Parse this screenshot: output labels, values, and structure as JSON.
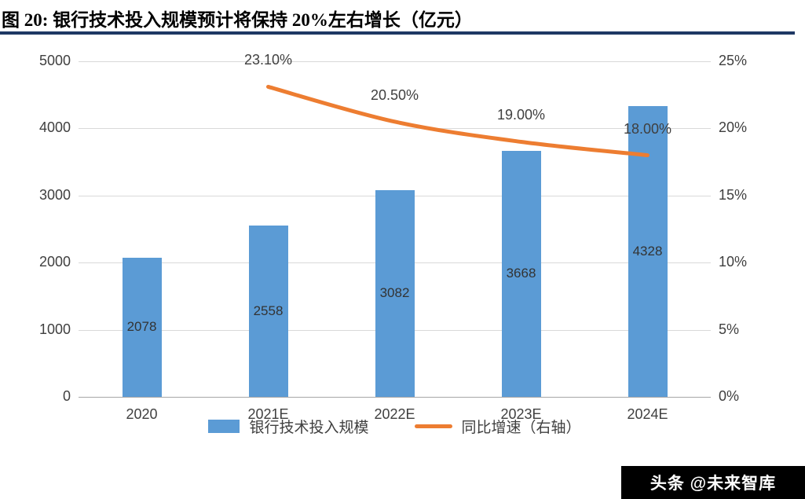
{
  "title": "图 20: 银行技术投入规模预计将保持 20%左右增长（亿元）",
  "watermark": "头条 @未来智库",
  "chart_data": {
    "type": "bar+line",
    "title": "银行技术投入规模预计将保持20%左右增长（亿元）",
    "categories": [
      "2020",
      "2021E",
      "2022E",
      "2023E",
      "2024E"
    ],
    "series": [
      {
        "name": "银行技术投入规模",
        "type": "bar",
        "axis": "left",
        "color": "#5B9BD5",
        "values": [
          2078,
          2558,
          3082,
          3668,
          4328
        ],
        "value_labels": [
          "2078",
          "2558",
          "3082",
          "3668",
          "4328"
        ]
      },
      {
        "name": "同比增速（右轴）",
        "type": "line",
        "axis": "right",
        "color": "#ED7D31",
        "values": [
          null,
          23.1,
          20.5,
          19.0,
          18.0
        ],
        "value_labels": [
          "",
          "23.10%",
          "20.50%",
          "19.00%",
          "18.00%"
        ]
      }
    ],
    "left_axis": {
      "min": 0,
      "max": 5000,
      "ticks_top_to_bottom": [
        "5000",
        "4000",
        "3000",
        "2000",
        "1000",
        "0"
      ]
    },
    "right_axis": {
      "min": 0,
      "max": 25,
      "ticks_top_to_bottom": [
        "25%",
        "20%",
        "15%",
        "10%",
        "5%",
        "0%"
      ]
    },
    "legend_position": "bottom",
    "grid": "horizontal"
  }
}
